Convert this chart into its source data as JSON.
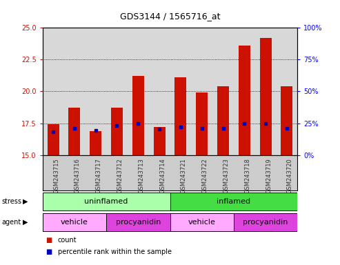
{
  "title": "GDS3144 / 1565716_at",
  "samples": [
    "GSM243715",
    "GSM243716",
    "GSM243717",
    "GSM243712",
    "GSM243713",
    "GSM243714",
    "GSM243721",
    "GSM243722",
    "GSM243723",
    "GSM243718",
    "GSM243719",
    "GSM243720"
  ],
  "count_values": [
    17.4,
    18.7,
    16.9,
    18.7,
    21.2,
    17.2,
    21.1,
    19.9,
    20.4,
    23.6,
    24.2,
    20.4
  ],
  "percentile_values": [
    16.85,
    17.1,
    16.95,
    17.3,
    17.5,
    17.05,
    17.2,
    17.1,
    17.1,
    17.5,
    17.5,
    17.1
  ],
  "y_min": 15,
  "y_max": 25,
  "y_ticks": [
    15,
    17.5,
    20,
    22.5,
    25
  ],
  "y_right_ticks": [
    0,
    25,
    50,
    75,
    100
  ],
  "stress_groups": [
    {
      "label": "uninflamed",
      "start": 0,
      "end": 6,
      "color": "#aaffaa"
    },
    {
      "label": "inflamed",
      "start": 6,
      "end": 12,
      "color": "#44dd44"
    }
  ],
  "agent_groups": [
    {
      "label": "vehicle",
      "start": 0,
      "end": 3,
      "color": "#ffaaff"
    },
    {
      "label": "procyanidin",
      "start": 3,
      "end": 6,
      "color": "#dd44dd"
    },
    {
      "label": "vehicle",
      "start": 6,
      "end": 9,
      "color": "#ffaaff"
    },
    {
      "label": "procyanidin",
      "start": 9,
      "end": 12,
      "color": "#dd44dd"
    }
  ],
  "bar_color": "#cc1100",
  "dot_color": "#0000bb",
  "bar_width": 0.55,
  "plot_bg_color": "#d8d8d8",
  "label_bg_color": "#cccccc"
}
